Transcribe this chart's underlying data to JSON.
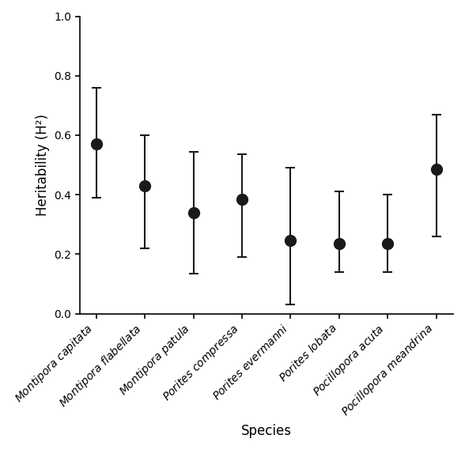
{
  "species": [
    "Montipora capitata",
    "Montipora flabellata",
    "Montipora patula",
    "Porites compressa",
    "Porites evermanni",
    "Porites lobata",
    "Pocillopora acuta",
    "Pocillopora meandrina"
  ],
  "h2": [
    0.57,
    0.43,
    0.34,
    0.385,
    0.245,
    0.235,
    0.235,
    0.485
  ],
  "ci_lower": [
    0.39,
    0.22,
    0.135,
    0.19,
    0.03,
    0.14,
    0.14,
    0.26
  ],
  "ci_upper": [
    0.76,
    0.6,
    0.545,
    0.535,
    0.49,
    0.41,
    0.4,
    0.67
  ],
  "ylim": [
    0.0,
    1.0
  ],
  "ylabel": "Heritability (H²)",
  "xlabel": "Species",
  "marker_color": "#1a1a1a",
  "marker_size": 10,
  "capsize": 4,
  "linewidth": 1.5,
  "background_color": "#ffffff"
}
